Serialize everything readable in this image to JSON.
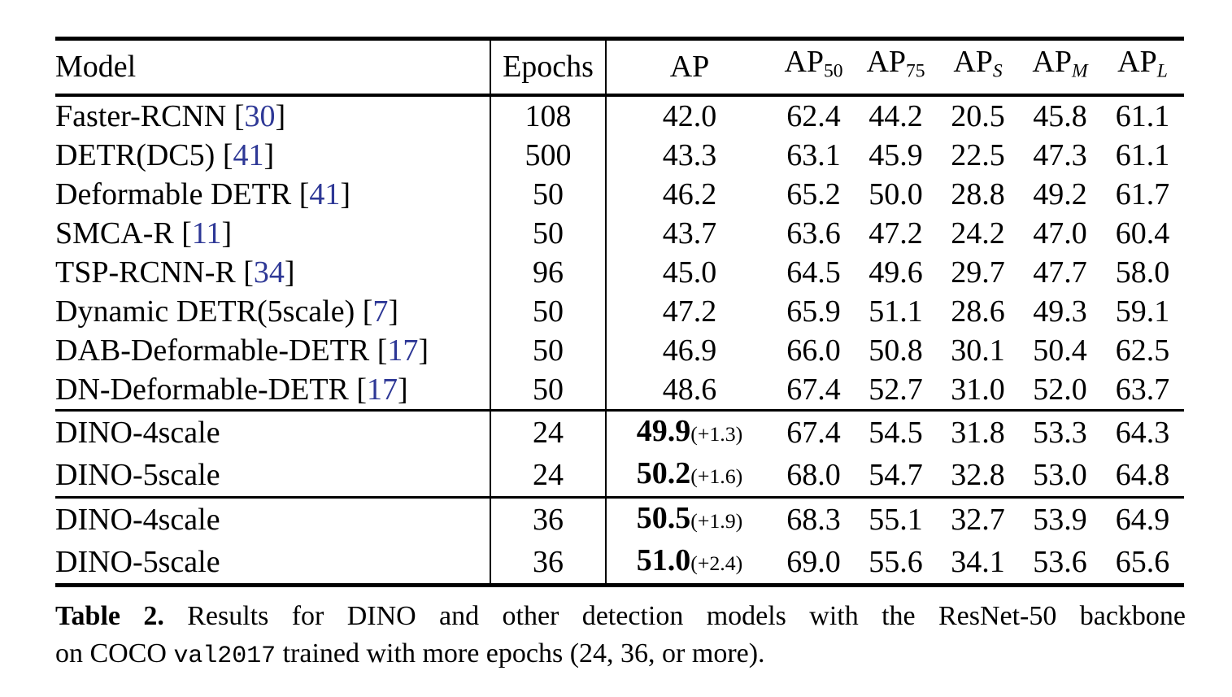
{
  "colors": {
    "background": "#ffffff",
    "text": "#000000",
    "rule": "#000000",
    "citation_blue": "#2e3896"
  },
  "table": {
    "header": {
      "model_label": "Model",
      "epochs_label": "Epochs",
      "metric_columns": [
        {
          "base": "AP",
          "sub": "",
          "sub_style": "none"
        },
        {
          "base": "AP",
          "sub": "50",
          "sub_style": "upright"
        },
        {
          "base": "AP",
          "sub": "75",
          "sub_style": "upright"
        },
        {
          "base": "AP",
          "sub": "S",
          "sub_style": "italic"
        },
        {
          "base": "AP",
          "sub": "M",
          "sub_style": "italic"
        },
        {
          "base": "AP",
          "sub": "L",
          "sub_style": "italic"
        }
      ]
    },
    "groups": [
      {
        "rows": [
          {
            "model": "Faster-RCNN",
            "cite": "30",
            "epochs": "108",
            "ap": "42.0",
            "ap_bold": false,
            "ap_delta": "",
            "metrics": [
              "62.4",
              "44.2",
              "20.5",
              "45.8",
              "61.1"
            ]
          },
          {
            "model": "DETR(DC5)",
            "cite": "41",
            "epochs": "500",
            "ap": "43.3",
            "ap_bold": false,
            "ap_delta": "",
            "metrics": [
              "63.1",
              "45.9",
              "22.5",
              "47.3",
              "61.1"
            ]
          },
          {
            "model": "Deformable DETR",
            "cite": "41",
            "epochs": "50",
            "ap": "46.2",
            "ap_bold": false,
            "ap_delta": "",
            "metrics": [
              "65.2",
              "50.0",
              "28.8",
              "49.2",
              "61.7"
            ]
          },
          {
            "model": "SMCA-R",
            "cite": "11",
            "epochs": "50",
            "ap": "43.7",
            "ap_bold": false,
            "ap_delta": "",
            "metrics": [
              "63.6",
              "47.2",
              "24.2",
              "47.0",
              "60.4"
            ]
          },
          {
            "model": "TSP-RCNN-R",
            "cite": "34",
            "epochs": "96",
            "ap": "45.0",
            "ap_bold": false,
            "ap_delta": "",
            "metrics": [
              "64.5",
              "49.6",
              "29.7",
              "47.7",
              "58.0"
            ]
          },
          {
            "model": "Dynamic DETR(5scale)",
            "cite": "7",
            "epochs": "50",
            "ap": "47.2",
            "ap_bold": false,
            "ap_delta": "",
            "metrics": [
              "65.9",
              "51.1",
              "28.6",
              "49.3",
              "59.1"
            ]
          },
          {
            "model": "DAB-Deformable-DETR",
            "cite": "17",
            "epochs": "50",
            "ap": "46.9",
            "ap_bold": false,
            "ap_delta": "",
            "metrics": [
              "66.0",
              "50.8",
              "30.1",
              "50.4",
              "62.5"
            ]
          },
          {
            "model": "DN-Deformable-DETR",
            "cite": "17",
            "epochs": "50",
            "ap": "48.6",
            "ap_bold": false,
            "ap_delta": "",
            "metrics": [
              "67.4",
              "52.7",
              "31.0",
              "52.0",
              "63.7"
            ]
          }
        ]
      },
      {
        "rows": [
          {
            "model": "DINO-4scale",
            "cite": "",
            "epochs": "24",
            "ap": "49.9",
            "ap_bold": true,
            "ap_delta": "(+1.3)",
            "metrics": [
              "67.4",
              "54.5",
              "31.8",
              "53.3",
              "64.3"
            ]
          },
          {
            "model": "DINO-5scale",
            "cite": "",
            "epochs": "24",
            "ap": "50.2",
            "ap_bold": true,
            "ap_delta": "(+1.6)",
            "metrics": [
              "68.0",
              "54.7",
              "32.8",
              "53.0",
              "64.8"
            ]
          }
        ]
      },
      {
        "rows": [
          {
            "model": "DINO-4scale",
            "cite": "",
            "epochs": "36",
            "ap": "50.5",
            "ap_bold": true,
            "ap_delta": "(+1.9)",
            "metrics": [
              "68.3",
              "55.1",
              "32.7",
              "53.9",
              "64.9"
            ]
          },
          {
            "model": "DINO-5scale",
            "cite": "",
            "epochs": "36",
            "ap": "51.0",
            "ap_bold": true,
            "ap_delta": "(+2.4)",
            "metrics": [
              "69.0",
              "55.6",
              "34.1",
              "53.6",
              "65.6"
            ]
          }
        ]
      }
    ]
  },
  "caption": {
    "label": "Table 2.",
    "line1": "Results for DINO and other detection models with the ResNet-50 backbone",
    "line2_pre": "on COCO ",
    "line2_code": "val2017",
    "line2_post": " trained with more epochs (24, 36, or more)."
  }
}
